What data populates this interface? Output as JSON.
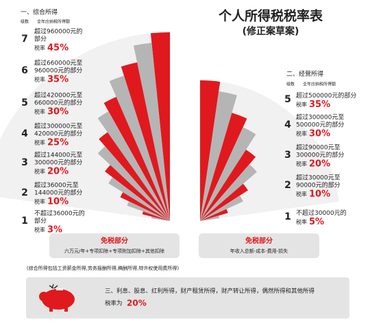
{
  "title": "个人所得税税率表",
  "subtitle": "(修正案草案)",
  "sections": [
    {
      "heading": "一、综合所得",
      "col_level": "级数",
      "col_income": "全年应纳税所得额",
      "rows": [
        {
          "level": 7,
          "desc": [
            "超过960000元的",
            "部分"
          ],
          "rate_label": "税率",
          "rate": "45%"
        },
        {
          "level": 6,
          "desc": [
            "超过660000元至",
            "960000元的部分"
          ],
          "rate_label": "税率",
          "rate": "35%"
        },
        {
          "level": 5,
          "desc": [
            "超过420000元至",
            "660000元的部分"
          ],
          "rate_label": "税率",
          "rate": "30%"
        },
        {
          "level": 4,
          "desc": [
            "超过300000元至",
            "420000元的部分"
          ],
          "rate_label": "税率",
          "rate": "25%"
        },
        {
          "level": 3,
          "desc": [
            "超过144000元至",
            "300000元的部分"
          ],
          "rate_label": "税率",
          "rate": "20%"
        },
        {
          "level": 2,
          "desc": [
            "超过36000元至",
            "144000元的部分"
          ],
          "rate_label": "税率",
          "rate": "10%"
        },
        {
          "level": 1,
          "desc": [
            "不超过36000元的",
            "部分"
          ],
          "rate_label": "税率",
          "rate": "3%"
        }
      ],
      "exempt": {
        "title": "免税部分",
        "text": "六万元/年+专项扣除+专项附加扣除+其他扣除"
      },
      "note": "(综合所得包括工资薪金所得,劳务报酬所得,稿酬所得,特许权使用费所得)"
    },
    {
      "heading": "二、经营所得",
      "col_level": "级数",
      "col_income": "全年应纳税所得额",
      "rows": [
        {
          "level": 5,
          "desc": [
            "超过500000元的部分"
          ],
          "rate_label": "税率",
          "rate": "35%"
        },
        {
          "level": 4,
          "desc": [
            "超过300000元至",
            "500000元的部分"
          ],
          "rate_label": "税率",
          "rate": "30%"
        },
        {
          "level": 3,
          "desc": [
            "超过90000元至",
            "300000元的部分"
          ],
          "rate_label": "税率",
          "rate": "20%"
        },
        {
          "level": 2,
          "desc": [
            "超过30000元至",
            "90000元的部分"
          ],
          "rate_label": "税率",
          "rate": "10%"
        },
        {
          "level": 1,
          "desc": [
            "不超过30000元的"
          ],
          "rate_label": "税率",
          "rate": "5%"
        }
      ],
      "exempt": {
        "title": "免税部分",
        "text": "年收入总额-成本-费用-损失"
      }
    }
  ],
  "other": {
    "text": "三、利息、股息、红利所得，财产租赁所得，财产转让所得，偶然所得和其他所得",
    "rate_label": "税率为",
    "rate": "20%"
  }
}
